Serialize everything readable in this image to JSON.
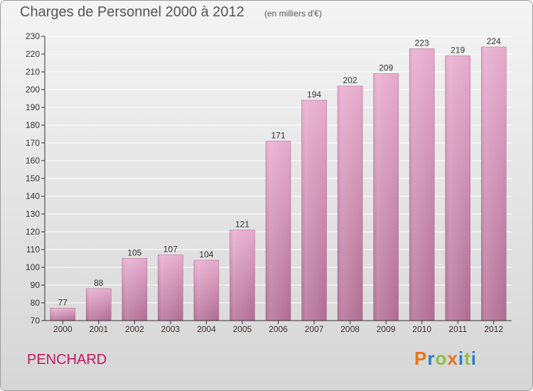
{
  "header": {
    "title": "Charges de Personnel 2000 à 2012",
    "subtitle": "(en milliers d'€)"
  },
  "footer": {
    "commune": "PENCHARD",
    "logo_text": "Proxiti"
  },
  "colors": {
    "bar_top": "#e6a9cc",
    "bar_bottom": "#b06b92",
    "axis": "#333333",
    "grid": "#ffffff",
    "commune": "#c2185b",
    "logo_letters": [
      "#e8731c",
      "#2c7cc4",
      "#8cc13f",
      "#e8731c",
      "#2c7cc4",
      "#8cc13f",
      "#2c7cc4"
    ]
  },
  "chart_data": {
    "type": "bar",
    "title": "Charges de Personnel 2000 à 2012",
    "subtitle": "(en milliers d'€)",
    "xlabel": "",
    "ylabel": "",
    "ylim": [
      70,
      230
    ],
    "yticks": [
      70,
      80,
      90,
      100,
      110,
      120,
      130,
      140,
      150,
      160,
      170,
      180,
      190,
      200,
      210,
      220,
      230
    ],
    "grid": true,
    "categories": [
      "2000",
      "2001",
      "2002",
      "2003",
      "2004",
      "2005",
      "2006",
      "2007",
      "2008",
      "2009",
      "2010",
      "2011",
      "2012"
    ],
    "values": [
      77,
      88,
      105,
      107,
      104,
      121,
      171,
      194,
      202,
      209,
      223,
      219,
      224
    ]
  }
}
